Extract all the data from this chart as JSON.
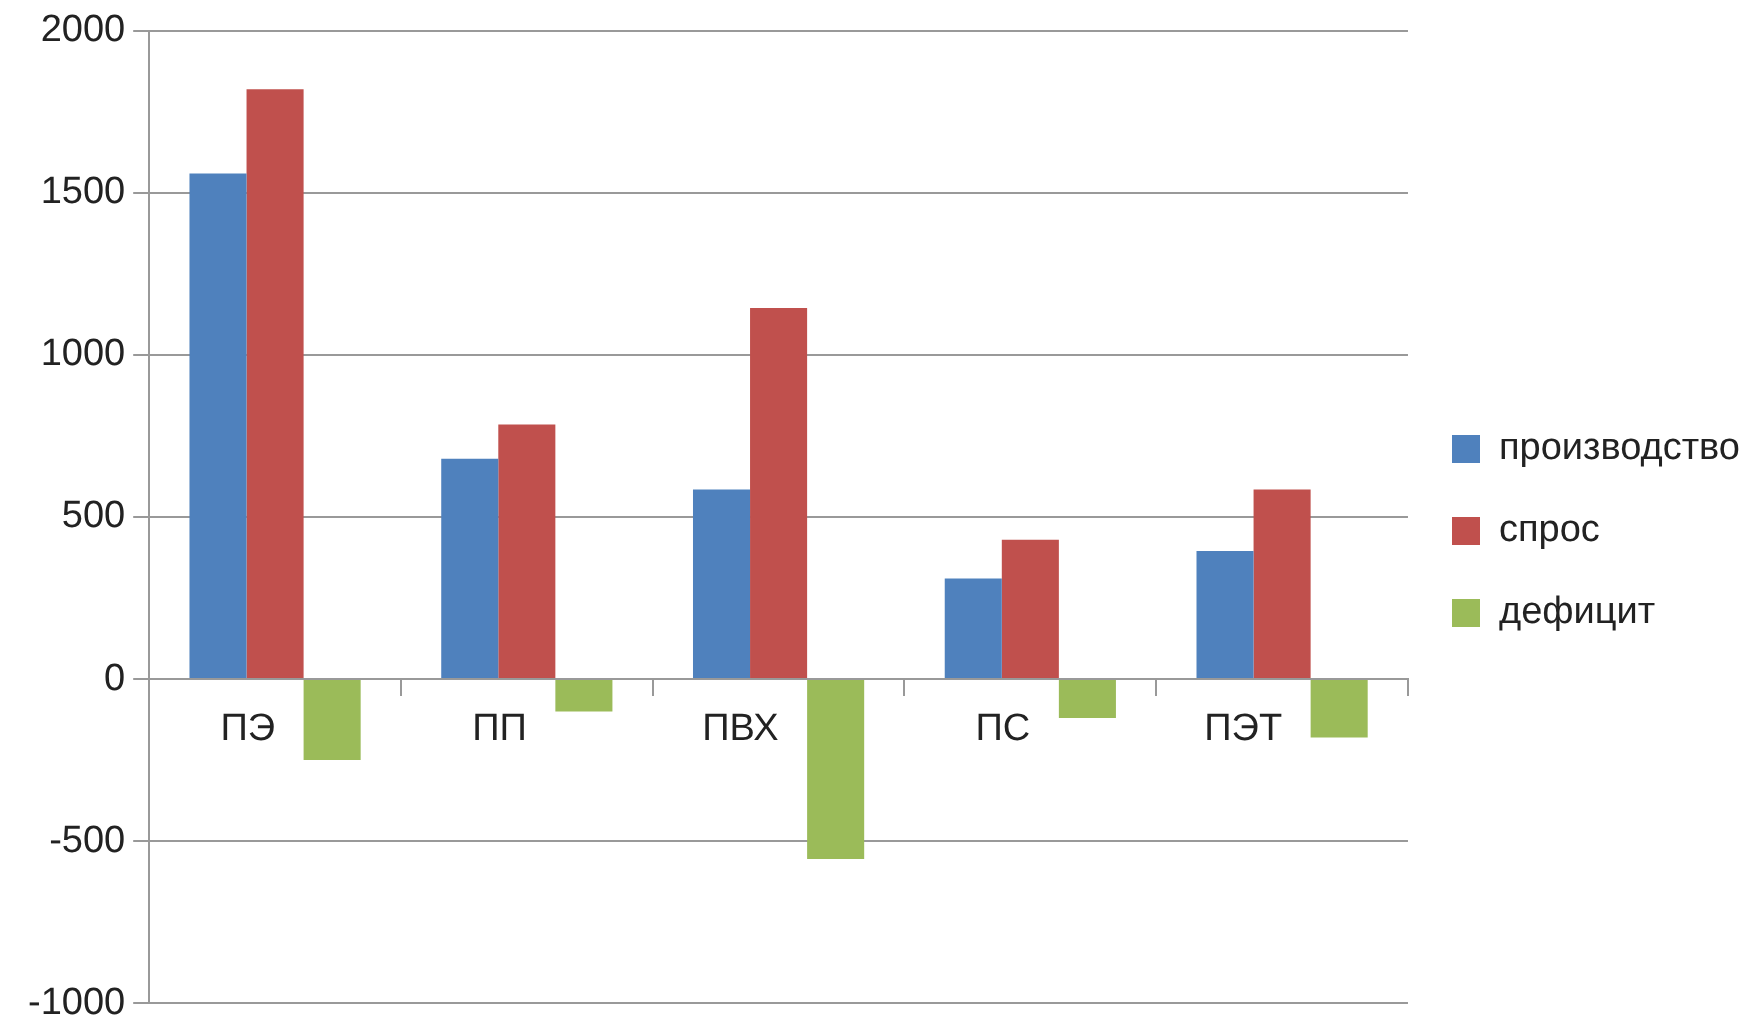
{
  "chart_data": {
    "type": "bar",
    "categories": [
      "ПЭ",
      "ПП",
      "ПВХ",
      "ПС",
      "ПЭТ"
    ],
    "series": [
      {
        "name": "производство",
        "color": "#4f81bd",
        "values": [
          1560,
          680,
          585,
          310,
          395
        ]
      },
      {
        "name": "спрос",
        "color": "#c0504d",
        "values": [
          1820,
          785,
          1145,
          430,
          585
        ]
      },
      {
        "name": "дефицит",
        "color": "#9bbb59",
        "values": [
          -250,
          -100,
          -555,
          -120,
          -180
        ]
      }
    ],
    "ylim": [
      -1000,
      2000
    ],
    "yticks": [
      -1000,
      -500,
      0,
      500,
      1000,
      1500,
      2000
    ],
    "grid": "y",
    "legend": "right"
  }
}
